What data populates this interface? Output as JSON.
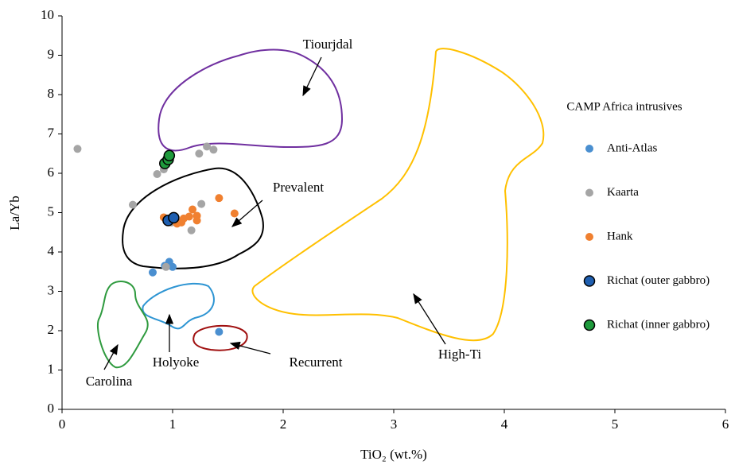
{
  "chart_data": {
    "type": "scatter",
    "xlabel": "TiO₂ (wt.%)",
    "ylabel": "La/Yb",
    "legend_title": "CAMP Africa intrusives",
    "legend": "right",
    "grid": false,
    "xlim": [
      0,
      6
    ],
    "xticks": [
      0,
      1,
      2,
      3,
      4,
      5,
      6
    ],
    "ylim": [
      0,
      10
    ],
    "yticks": [
      0,
      1,
      2,
      3,
      4,
      5,
      6,
      7,
      8,
      9,
      10
    ],
    "annotations": [
      "Tiourjdal",
      "Prevalent",
      "High-Ti",
      "Recurrent",
      "Holyoke",
      "Carolina"
    ],
    "series": [
      {
        "name": "Anti-Atlas",
        "color": "#4a8fd0",
        "x": [
          0.82,
          0.93,
          0.97,
          1.0,
          1.42
        ],
        "values": [
          3.48,
          3.65,
          3.75,
          3.62,
          1.97
        ]
      },
      {
        "name": "Kaarta",
        "color": "#a5a5a5",
        "x": [
          0.14,
          0.64,
          0.86,
          0.92,
          0.96,
          1.24,
          1.31,
          1.37,
          1.26,
          1.17,
          0.94,
          0.99
        ],
        "values": [
          6.62,
          5.2,
          5.98,
          6.1,
          6.35,
          6.5,
          6.68,
          6.6,
          5.22,
          4.55,
          3.62,
          4.75
        ]
      },
      {
        "name": "Hank",
        "color": "#f08030",
        "x": [
          0.92,
          1.0,
          1.04,
          1.1,
          1.15,
          1.18,
          1.22,
          1.22,
          1.42,
          1.56,
          1.08
        ],
        "values": [
          4.88,
          4.9,
          4.72,
          4.85,
          4.9,
          5.08,
          4.8,
          4.92,
          5.37,
          4.98,
          4.75
        ]
      },
      {
        "name": "Richat (outer gabbro)",
        "color": "#1f5fb0",
        "x": [
          0.96,
          1.01
        ],
        "values": [
          4.8,
          4.87
        ]
      },
      {
        "name": "Richat (inner gabbro)",
        "color": "#1e9a3c",
        "x": [
          0.93,
          0.96,
          0.97
        ],
        "values": [
          6.25,
          6.35,
          6.45
        ]
      }
    ]
  }
}
